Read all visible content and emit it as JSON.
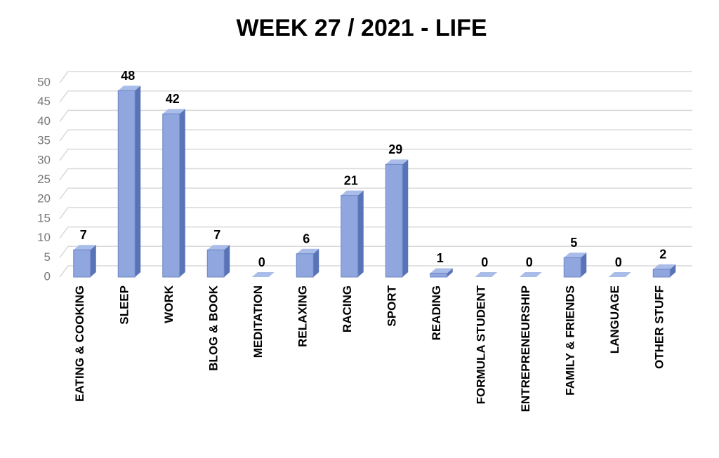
{
  "chart_data": {
    "type": "bar",
    "title": "WEEK 27 / 2021 - LIFE",
    "categories": [
      "EATING & COOKING",
      "SLEEP",
      "WORK",
      "BLOG & BOOK",
      "MEDITATION",
      "RELAXING",
      "RACING",
      "SPORT",
      "READING",
      "FORMULA STUDENT",
      "ENTREPRENEURSHIP",
      "FAMILY & FRIENDS",
      "LANGUAGE",
      "OTHER STUFF"
    ],
    "values": [
      7,
      48,
      42,
      7,
      0,
      6,
      21,
      29,
      1,
      0,
      0,
      5,
      0,
      2
    ],
    "color": "#8fa6de",
    "ylim": [
      0,
      50
    ],
    "yticks": [
      0,
      5,
      10,
      15,
      20,
      25,
      30,
      35,
      40,
      45,
      50
    ],
    "grid": true
  }
}
